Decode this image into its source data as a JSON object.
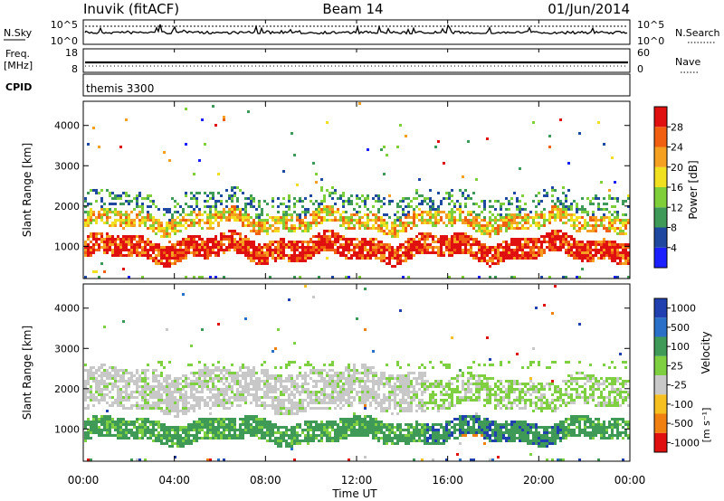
{
  "header": {
    "site": "Inuvik (fitACF)",
    "beam": "Beam 14",
    "date": "01/Jun/2014"
  },
  "noise_panel": {
    "left_label": "N.Sky",
    "left_ticks": [
      "10^5",
      "10^0"
    ],
    "right_label": "N.Search",
    "right_ticks": [
      "10^5",
      "10^0"
    ]
  },
  "freq_panel": {
    "left_label_1": "Freq.",
    "left_label_2": "[MHz]",
    "left_ticks": [
      "18",
      "8"
    ],
    "right_label": "Nave",
    "right_ticks": [
      "60",
      "0"
    ]
  },
  "cpid_panel": {
    "label": "CPID",
    "value": "themis 3300"
  },
  "chart_data": [
    {
      "type": "heatmap",
      "name": "power",
      "ylabel": "Slant Range [km]",
      "ylim": [
        200,
        4600
      ],
      "yticks": [
        "1000",
        "2000",
        "3000",
        "4000"
      ],
      "colorbar_label": "Power [dB]",
      "colorbar_ticks": [
        "4",
        "8",
        "12",
        "16",
        "20",
        "24",
        "28"
      ],
      "colorbar_colors": [
        "#1a20ff",
        "#1f48a0",
        "#3f9a58",
        "#7fcf3a",
        "#f0e020",
        "#f5a020",
        "#f06010",
        "#e01010"
      ],
      "bands": [
        {
          "range_km": [
            700,
            1250
          ],
          "hours": [
            0,
            24
          ],
          "class": "high"
        },
        {
          "range_km": [
            1400,
            1900
          ],
          "hours": [
            0,
            24
          ],
          "class": "mid"
        },
        {
          "range_km": [
            1900,
            2400
          ],
          "hours": [
            0,
            24
          ],
          "class": "low"
        }
      ]
    },
    {
      "type": "heatmap",
      "name": "velocity",
      "ylabel": "Slant Range [km]",
      "ylim": [
        200,
        4600
      ],
      "yticks": [
        "1000",
        "2000",
        "3000",
        "4000"
      ],
      "colorbar_label": "Velocity",
      "colorbar_unit": "[m s⁻¹]",
      "colorbar_ticks": [
        "1000",
        "500",
        "100",
        "25",
        "-25",
        "-100",
        "-500",
        "-1000"
      ],
      "colorbar_colors": [
        "#2040b0",
        "#2a70c8",
        "#3f9a58",
        "#7fd040",
        "#c8c8c8",
        "#f5c020",
        "#f08010",
        "#e01010"
      ],
      "bands": [
        {
          "range_km": [
            700,
            1250
          ],
          "hours": [
            0,
            24
          ],
          "class": "green"
        },
        {
          "range_km": [
            1500,
            2500
          ],
          "hours": [
            0,
            15
          ],
          "class": "grey"
        },
        {
          "range_km": [
            1600,
            2200
          ],
          "hours": [
            15,
            24
          ],
          "class": "green"
        }
      ]
    }
  ],
  "xaxis": {
    "label": "Time UT",
    "ticks": [
      "00:00",
      "04:00",
      "08:00",
      "12:00",
      "16:00",
      "20:00",
      "00:00"
    ],
    "range_hours": [
      0,
      24
    ]
  }
}
